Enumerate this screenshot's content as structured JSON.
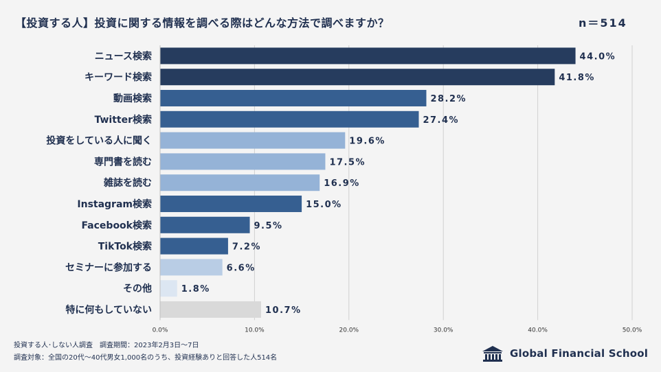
{
  "title": "【投資する人】投資に関する情報を調べる際はどんな方法で調べますか？",
  "sample_size": "n＝514",
  "footer": {
    "line1": "投資する人･しない人調査　調査期間：2023年2月3日～7日",
    "line2": "調査対象：全国の20代～40代男女1,000名のうち、投資経験ありと回答した人514名"
  },
  "brand": "Global Financial School",
  "chart_data": {
    "type": "bar",
    "orientation": "horizontal",
    "categories": [
      "ニュース検索",
      "キーワード検索",
      "動画検索",
      "Twitter検索",
      "投資をしている人に聞く",
      "専門書を読む",
      "雑誌を読む",
      "Instagram検索",
      "Facebook検索",
      "TikTok検索",
      "セミナーに参加する",
      "その他",
      "特に何もしていない"
    ],
    "values": [
      44.0,
      41.8,
      28.2,
      27.4,
      19.6,
      17.5,
      16.9,
      15.0,
      9.5,
      7.2,
      6.6,
      1.8,
      10.7
    ],
    "value_labels": [
      "44.0%",
      "41.8%",
      "28.2%",
      "27.4%",
      "19.6%",
      "17.5%",
      "16.9%",
      "15.0%",
      "9.5%",
      "7.2%",
      "6.6%",
      "1.8%",
      "10.7%"
    ],
    "bar_colors": [
      "#263c5e",
      "#263c5e",
      "#365f91",
      "#365f91",
      "#95b3d7",
      "#95b3d7",
      "#95b3d7",
      "#365f91",
      "#365f91",
      "#365f91",
      "#b9cde5",
      "#dce6f2",
      "#d9d9d9"
    ],
    "xlim": [
      0,
      50
    ],
    "ticks": [
      "0.0%",
      "10.0%",
      "20.0%",
      "30.0%",
      "40.0%",
      "50.0%"
    ],
    "tick_values": [
      0,
      10,
      20,
      30,
      40,
      50
    ],
    "grid": true
  }
}
